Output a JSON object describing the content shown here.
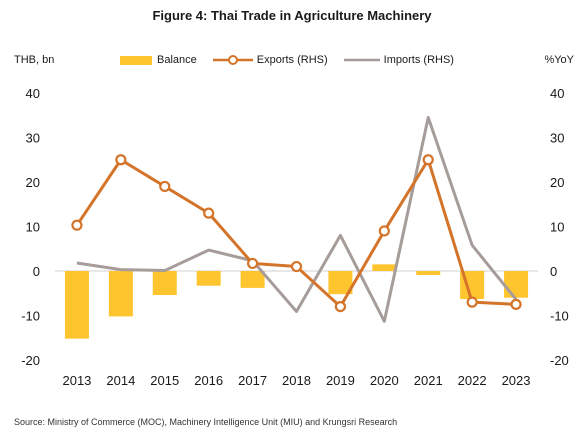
{
  "chart_data": {
    "type": "bar+line",
    "title": "Figure 4: Thai Trade in Agriculture Machinery",
    "ylabel_left": "THB, bn",
    "ylabel_right": "%YoY",
    "categories": [
      "2013",
      "2014",
      "2015",
      "2016",
      "2017",
      "2018",
      "2019",
      "2020",
      "2021",
      "2022",
      "2023"
    ],
    "ylim": [
      -20,
      40
    ],
    "yticks": [
      -20,
      -10,
      0,
      10,
      20,
      30,
      40
    ],
    "series": [
      {
        "name": "Balance",
        "type": "bar",
        "color": "#FFC52E",
        "values": [
          -15.2,
          -10.2,
          -5.4,
          -3.3,
          -3.8,
          null,
          -5.2,
          1.5,
          -0.9,
          -6.3,
          -6.0
        ]
      },
      {
        "name": "Exports (RHS)",
        "type": "line",
        "color": "#D4742A",
        "markers": true,
        "values": [
          10.3,
          25.0,
          19.0,
          13.0,
          1.7,
          1.0,
          -8.0,
          9.0,
          25.0,
          -7.0,
          -7.5
        ]
      },
      {
        "name": "Imports (RHS)",
        "type": "line",
        "color": "#A69C9A",
        "markers": false,
        "values": [
          1.8,
          0.3,
          0.1,
          4.7,
          2.3,
          -9.1,
          8.0,
          -11.3,
          34.5,
          5.8,
          -6.4
        ]
      }
    ],
    "legend_position": "top",
    "grid": false
  },
  "source": "Source: Ministry of Commerce (MOC), Machinery Intelligence Unit (MIU) and Krungsri Research"
}
